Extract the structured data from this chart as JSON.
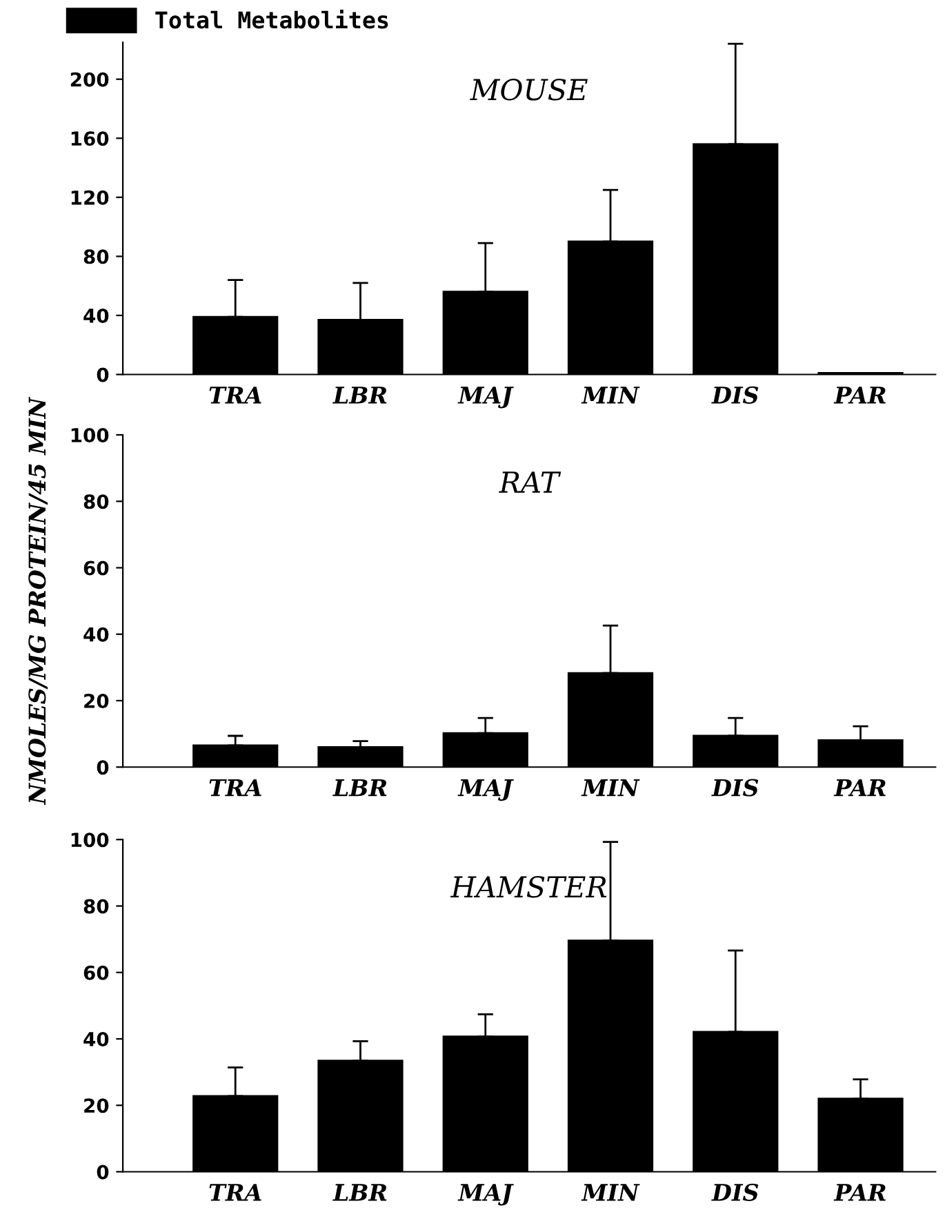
{
  "chart_data": [
    {
      "type": "bar",
      "title": "MOUSE",
      "categories": [
        "TRA",
        "LBR",
        "MAJ",
        "MIN",
        "DIS",
        "PAR"
      ],
      "legend": "top left",
      "ylim": [
        0,
        225
      ],
      "yticks": [
        0,
        40,
        80,
        120,
        160,
        200
      ],
      "grid": false,
      "series": [
        {
          "name": "Total Metabolites",
          "color": "#000000",
          "values": [
            39,
            37,
            56,
            90,
            156,
            1
          ],
          "errors": [
            [
              39,
              64
            ],
            [
              37,
              62
            ],
            [
              56,
              89
            ],
            [
              90,
              125
            ],
            [
              156,
              224
            ],
            null
          ]
        }
      ]
    },
    {
      "type": "bar",
      "title": "RAT",
      "ylabel": "NMOLES/MG PROTEIN/45 MIN",
      "categories": [
        "TRA",
        "LBR",
        "MAJ",
        "MIN",
        "DIS",
        "PAR"
      ],
      "ylim": [
        0,
        100
      ],
      "yticks": [
        0,
        20,
        40,
        60,
        80,
        100
      ],
      "grid": false,
      "series": [
        {
          "color": "#000000",
          "values": [
            6.5,
            6,
            10.2,
            28.3,
            9.4,
            8.1
          ],
          "errors": [
            [
              6.5,
              9.4
            ],
            [
              6,
              7.8
            ],
            [
              10.2,
              14.8
            ],
            [
              28.3,
              42.6
            ],
            [
              9.4,
              14.8
            ],
            [
              8.1,
              12.3
            ]
          ]
        }
      ]
    },
    {
      "type": "bar",
      "title": "HAMSTER",
      "categories": [
        "TRA",
        "LBR",
        "MAJ",
        "MIN",
        "DIS",
        "PAR"
      ],
      "ylim": [
        0,
        100
      ],
      "yticks": [
        0,
        20,
        40,
        60,
        80,
        100
      ],
      "grid": false,
      "series": [
        {
          "color": "#000000",
          "values": [
            22.8,
            33.4,
            40.7,
            69.6,
            42.1,
            22
          ],
          "errors": [
            [
              22.8,
              31.4
            ],
            [
              33.4,
              39.3
            ],
            [
              40.7,
              47.4
            ],
            [
              69.6,
              99.3
            ],
            [
              42.1,
              66.6
            ],
            [
              22,
              27.8
            ]
          ]
        }
      ]
    }
  ]
}
